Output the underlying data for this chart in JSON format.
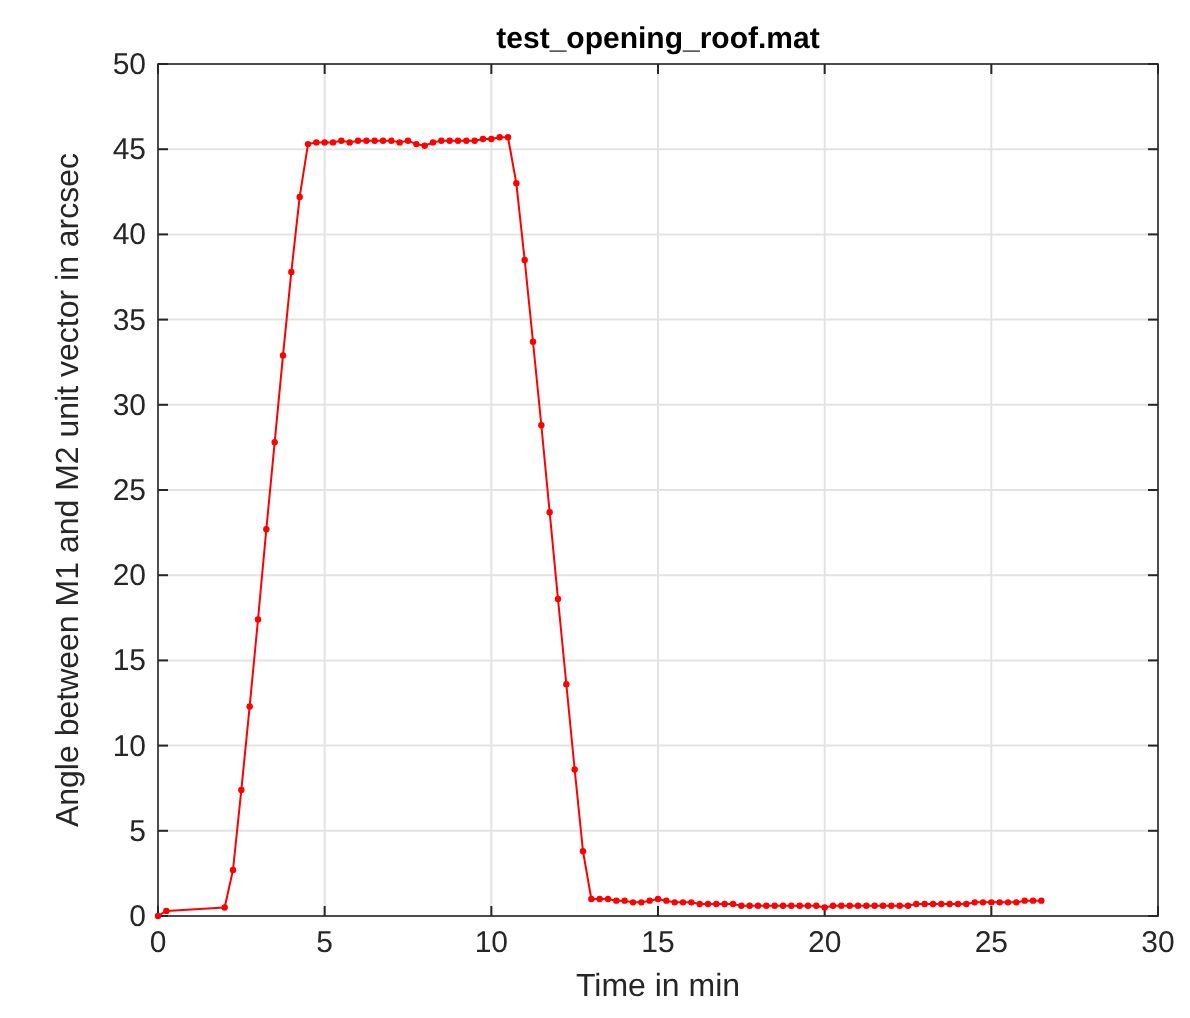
{
  "chart_data": {
    "type": "line",
    "title": "test_opening_roof.mat",
    "xlabel": "Time in min",
    "ylabel": "Angle between M1 and M2 unit vector in arcsec",
    "xlim": [
      0,
      30
    ],
    "xticks": [
      0,
      5,
      10,
      15,
      20,
      25,
      30
    ],
    "ylim": [
      0,
      50
    ],
    "yticks": [
      0,
      5,
      10,
      15,
      20,
      25,
      30,
      35,
      40,
      45,
      50
    ],
    "grid": true,
    "marker": "circle",
    "line_style": "solid",
    "series": [
      {
        "color": "#ff0000",
        "x": [
          0,
          0.25,
          2.0,
          2.25,
          2.5,
          2.75,
          3.0,
          3.25,
          3.5,
          3.75,
          4.0,
          4.25,
          4.5,
          4.75,
          5.0,
          5.25,
          5.5,
          5.75,
          6.0,
          6.25,
          6.5,
          6.75,
          7.0,
          7.25,
          7.5,
          7.75,
          8.0,
          8.25,
          8.5,
          8.75,
          9.0,
          9.25,
          9.5,
          9.75,
          10.0,
          10.25,
          10.5,
          10.75,
          11.0,
          11.25,
          11.5,
          11.75,
          12.0,
          12.25,
          12.5,
          12.75,
          13.0,
          13.25,
          13.5,
          13.75,
          14.0,
          14.25,
          14.5,
          14.75,
          15.0,
          15.25,
          15.5,
          15.75,
          16.0,
          16.25,
          16.5,
          16.75,
          17.0,
          17.25,
          17.5,
          17.75,
          18.0,
          18.25,
          18.5,
          18.75,
          19.0,
          19.25,
          19.5,
          19.75,
          20.0,
          20.25,
          20.5,
          20.75,
          21.0,
          21.25,
          21.5,
          21.75,
          22.0,
          22.25,
          22.5,
          22.75,
          23.0,
          23.25,
          23.5,
          23.75,
          24.0,
          24.25,
          24.5,
          24.75,
          25.0,
          25.25,
          25.5,
          25.75,
          26.0,
          26.25,
          26.5
        ],
        "values": [
          0,
          0.3,
          0.5,
          2.7,
          7.4,
          12.3,
          17.4,
          22.7,
          27.8,
          32.9,
          37.8,
          42.2,
          45.3,
          45.4,
          45.4,
          45.4,
          45.5,
          45.4,
          45.5,
          45.5,
          45.5,
          45.5,
          45.5,
          45.4,
          45.5,
          45.3,
          45.2,
          45.4,
          45.5,
          45.5,
          45.5,
          45.5,
          45.5,
          45.6,
          45.6,
          45.7,
          45.7,
          43.0,
          38.5,
          33.7,
          28.8,
          23.7,
          18.6,
          13.6,
          8.6,
          3.8,
          1.0,
          1.0,
          1.0,
          0.9,
          0.9,
          0.8,
          0.8,
          0.9,
          1.0,
          0.9,
          0.8,
          0.8,
          0.8,
          0.7,
          0.7,
          0.7,
          0.7,
          0.7,
          0.6,
          0.6,
          0.6,
          0.6,
          0.6,
          0.6,
          0.6,
          0.6,
          0.6,
          0.6,
          0.5,
          0.6,
          0.6,
          0.6,
          0.6,
          0.6,
          0.6,
          0.6,
          0.6,
          0.6,
          0.6,
          0.7,
          0.7,
          0.7,
          0.7,
          0.7,
          0.7,
          0.7,
          0.8,
          0.8,
          0.8,
          0.8,
          0.8,
          0.8,
          0.9,
          0.9,
          0.9
        ]
      }
    ]
  }
}
